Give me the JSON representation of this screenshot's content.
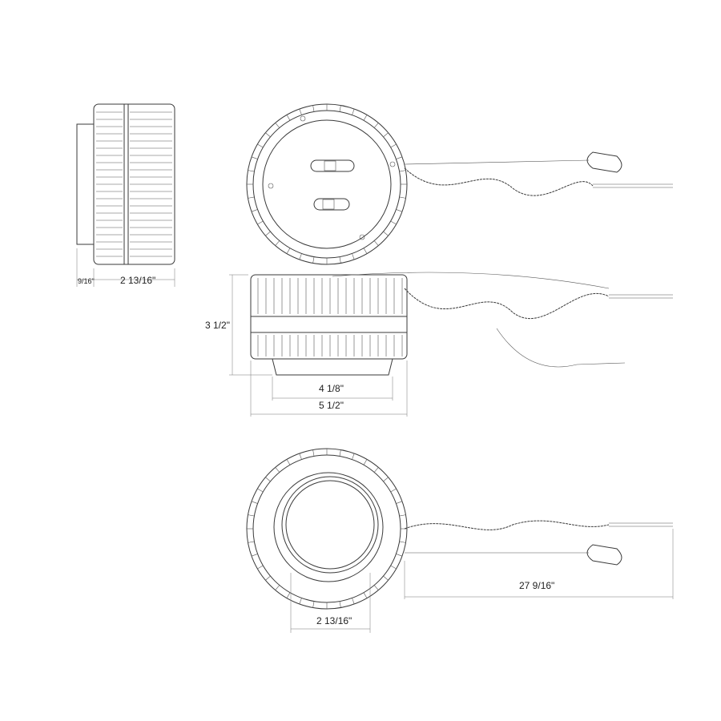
{
  "dimensions": {
    "side_plate_depth": "9/16\"",
    "side_body_depth": "2 13/16\"",
    "height": "3 1/2\"",
    "bracket_width": "4 1/8\"",
    "overall_width": "5 1/2\"",
    "cable_length": "27 9/16\"",
    "aperture": "2 13/16\""
  },
  "colors": {
    "line": "#3a3a3a",
    "dimension": "#777777"
  }
}
